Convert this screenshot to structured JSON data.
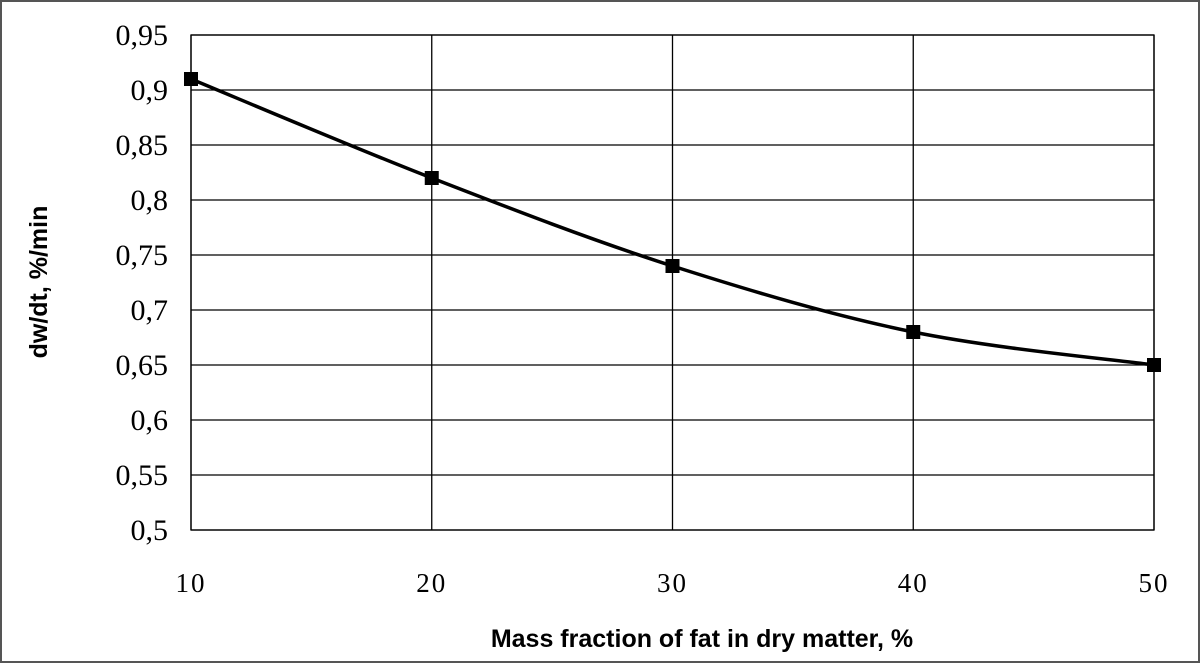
{
  "chart_data": {
    "type": "line",
    "title": "",
    "xlabel": "Mass fraction of fat in dry matter, %",
    "ylabel": "dw/dt, %/min",
    "x": [
      10,
      20,
      30,
      40,
      50
    ],
    "series": [
      {
        "values": [
          0.91,
          0.82,
          0.74,
          0.68,
          0.65
        ]
      }
    ],
    "xlim": [
      10,
      50
    ],
    "ylim": [
      0.5,
      0.95
    ],
    "x_ticks": [
      10,
      20,
      30,
      40,
      50
    ],
    "x_tick_labels": [
      "10",
      "20",
      "30",
      "40",
      "50"
    ],
    "y_ticks": [
      0.5,
      0.55,
      0.6,
      0.65,
      0.7,
      0.75,
      0.8,
      0.85,
      0.9,
      0.95
    ],
    "y_tick_labels": [
      "0,5",
      "0,55",
      "0,6",
      "0,65",
      "0,7",
      "0,75",
      "0,8",
      "0,85",
      "0,9",
      "0,95"
    ],
    "grid": true,
    "marker": "square",
    "line_color": "#000000",
    "grid_color": "#000000"
  }
}
